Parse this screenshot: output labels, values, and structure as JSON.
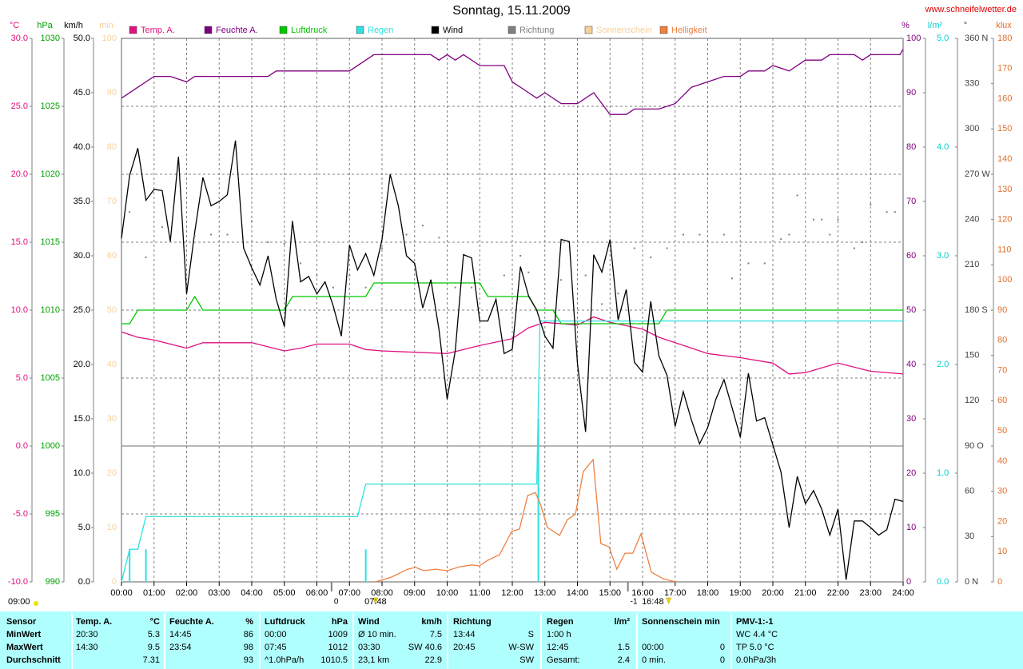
{
  "chart_data": {
    "type": "line",
    "title": "Sonntag, 15.11.2009",
    "source": "www.schneifelwetter.de",
    "xlim": [
      0,
      24
    ],
    "xticks": [
      {
        "value": 0,
        "label": "00:00"
      },
      {
        "value": 1,
        "label": "01:00"
      },
      {
        "value": 2,
        "label": "02:00"
      },
      {
        "value": 3,
        "label": "03:00"
      },
      {
        "value": 4,
        "label": "04:00"
      },
      {
        "value": 5,
        "label": "05:00"
      },
      {
        "value": 6,
        "label": "06:00"
      },
      {
        "value": 7,
        "label": "07:00"
      },
      {
        "value": 8,
        "label": "08:00"
      },
      {
        "value": 9,
        "label": "09:00"
      },
      {
        "value": 10,
        "label": "10:00"
      },
      {
        "value": 11,
        "label": "11:00"
      },
      {
        "value": 12,
        "label": "12:00"
      },
      {
        "value": 13,
        "label": "13:00"
      },
      {
        "value": 14,
        "label": "14:00"
      },
      {
        "value": 15,
        "label": "15:00"
      },
      {
        "value": 16,
        "label": "16:00"
      },
      {
        "value": 17,
        "label": "17:00"
      },
      {
        "value": 18,
        "label": "18:00"
      },
      {
        "value": 19,
        "label": "19:00"
      },
      {
        "value": 20,
        "label": "20:00"
      },
      {
        "value": 21,
        "label": "21:00"
      },
      {
        "value": 22,
        "label": "22:00"
      },
      {
        "value": 23,
        "label": "23:00"
      },
      {
        "value": 24,
        "label": "24:00"
      }
    ],
    "grid": true,
    "grid_axis": "temp",
    "axes": {
      "temp": {
        "unit": "°C",
        "color": "#e01080",
        "lim": [
          -10,
          30
        ],
        "ticks": [
          {
            "value": -10,
            "label": "-10.0"
          },
          {
            "value": -5,
            "label": "-5.0"
          },
          {
            "value": 0,
            "label": "0.0"
          },
          {
            "value": 5,
            "label": "5.0"
          },
          {
            "value": 10,
            "label": "10.0"
          },
          {
            "value": 15,
            "label": "15.0"
          },
          {
            "value": 20,
            "label": "20.0"
          },
          {
            "value": 25,
            "label": "25.0"
          },
          {
            "value": 30,
            "label": "30.0"
          }
        ]
      },
      "pressure": {
        "unit": "hPa",
        "color": "#00a000",
        "lim": [
          990,
          1030
        ],
        "ticks": [
          990,
          995,
          1000,
          1005,
          1010,
          1015,
          1020,
          1025,
          1030
        ]
      },
      "wind": {
        "unit": "km/h",
        "color": "#000000",
        "lim": [
          0,
          50
        ],
        "ticks": [
          {
            "value": 0,
            "label": "0.0"
          },
          {
            "value": 5,
            "label": "5.0"
          },
          {
            "value": 10,
            "label": "10.0"
          },
          {
            "value": 15,
            "label": "15.0"
          },
          {
            "value": 20,
            "label": "20.0"
          },
          {
            "value": 25,
            "label": "25.0"
          },
          {
            "value": 30,
            "label": "30.0"
          },
          {
            "value": 35,
            "label": "35.0"
          },
          {
            "value": 40,
            "label": "40.0"
          },
          {
            "value": 45,
            "label": "45.0"
          },
          {
            "value": 50,
            "label": "50.0"
          }
        ]
      },
      "sun": {
        "unit": "min",
        "color": "#f8d098",
        "lim": [
          0,
          100
        ],
        "ticks": [
          0,
          10,
          20,
          30,
          40,
          50,
          60,
          70,
          80,
          90,
          100
        ]
      },
      "hum": {
        "unit": "%",
        "color": "#800080",
        "lim": [
          0,
          100
        ],
        "ticks": [
          0,
          10,
          20,
          30,
          40,
          50,
          60,
          70,
          80,
          90,
          100
        ]
      },
      "rain": {
        "unit": "l/m²",
        "color": "#00d0d0",
        "lim": [
          0,
          5
        ],
        "ticks": [
          {
            "value": 0,
            "label": "0.0"
          },
          {
            "value": 1,
            "label": "1.0"
          },
          {
            "value": 2,
            "label": "2.0"
          },
          {
            "value": 3,
            "label": "3.0"
          },
          {
            "value": 4,
            "label": "4.0"
          },
          {
            "value": 5,
            "label": "5.0"
          }
        ]
      },
      "dir": {
        "unit": "°",
        "color": "#404040",
        "lim": [
          0,
          360
        ],
        "ticks": [
          {
            "value": 0,
            "label": "0 N"
          },
          30,
          60,
          {
            "value": 90,
            "label": "90 O"
          },
          120,
          150,
          {
            "value": 180,
            "label": "180 S"
          },
          210,
          240,
          {
            "value": 270,
            "label": "270 W"
          },
          300,
          330,
          {
            "value": 360,
            "label": "360 N"
          }
        ]
      },
      "lux": {
        "unit": "klux",
        "color": "#e07030",
        "lim": [
          0,
          180
        ],
        "ticks": [
          0,
          10,
          20,
          30,
          40,
          50,
          60,
          70,
          80,
          90,
          100,
          110,
          120,
          130,
          140,
          150,
          160,
          170,
          180
        ]
      }
    },
    "series": [
      {
        "name": "Temp. A.",
        "color": "#e01080",
        "axis": "temp",
        "x": [
          0,
          0.5,
          1,
          1.5,
          2,
          2.5,
          3,
          4,
          5,
          5.5,
          6,
          7,
          7.5,
          8,
          9,
          10,
          11,
          12,
          12.5,
          13,
          14,
          14.5,
          15,
          16,
          16.5,
          17,
          18,
          19,
          20,
          20.5,
          21,
          22,
          23,
          24
        ],
        "values": [
          8.4,
          8.0,
          7.8,
          7.5,
          7.2,
          7.6,
          7.6,
          7.6,
          7.0,
          7.2,
          7.5,
          7.5,
          7.1,
          7.0,
          6.9,
          6.8,
          7.4,
          7.9,
          8.7,
          9.1,
          8.9,
          9.5,
          9.1,
          8.6,
          8.0,
          7.6,
          6.8,
          6.5,
          6.1,
          5.3,
          5.4,
          6.1,
          5.5,
          5.3
        ]
      },
      {
        "name": "Feuchte A.",
        "color": "#800080",
        "axis": "hum",
        "x": [
          0,
          0.5,
          1,
          1.5,
          2,
          2.25,
          4.5,
          4.75,
          7,
          7.75,
          9.5,
          9.75,
          10,
          10.25,
          10.5,
          11,
          11.75,
          12,
          12.5,
          12.75,
          13,
          13.5,
          14,
          14.5,
          15,
          15.5,
          15.75,
          16.5,
          17,
          17.5,
          18,
          18.5,
          19,
          19.25,
          19.75,
          20,
          20.5,
          21,
          21.5,
          21.75,
          22.5,
          22.75,
          23,
          23.9,
          24
        ],
        "values": [
          89,
          91,
          93,
          93,
          92,
          93,
          93,
          94,
          94,
          97,
          97,
          96,
          97,
          96,
          97,
          95,
          95,
          92,
          90,
          89,
          90,
          88,
          88,
          90,
          86,
          86,
          87,
          87,
          88,
          91,
          92,
          93,
          93,
          94,
          94,
          95,
          94,
          96,
          96,
          97,
          97,
          96,
          97,
          97,
          98
        ]
      },
      {
        "name": "Luftdruck",
        "color": "#00c800",
        "axis": "pressure",
        "x": [
          0,
          0.25,
          0.5,
          2,
          2.25,
          2.5,
          5,
          5.25,
          7.5,
          7.75,
          11,
          11.25,
          12.5,
          12.75,
          13.25,
          13.5,
          16.5,
          16.75,
          24
        ],
        "values": [
          1009,
          1009,
          1010,
          1010,
          1011,
          1010,
          1010,
          1011,
          1011,
          1012,
          1012,
          1011,
          1011,
          1010,
          1010,
          1009,
          1009,
          1010,
          1010
        ]
      },
      {
        "name": "Regen",
        "color": "#30e0e0",
        "axis": "rain",
        "x": [
          0,
          0.25,
          0.5,
          0.75,
          7.25,
          7.5,
          12.75,
          12.85,
          24
        ],
        "values": [
          0,
          0.3,
          0.3,
          0.6,
          0.6,
          0.9,
          0.9,
          2.4,
          2.4
        ],
        "bars": {
          "x": [
            0.25,
            0.75,
            7.5,
            12.8
          ],
          "values": [
            0.3,
            0.3,
            0.3,
            1.5
          ]
        }
      },
      {
        "name": "Wind",
        "color": "#000000",
        "axis": "wind",
        "x": [
          0,
          0.25,
          0.5,
          0.75,
          1,
          1.25,
          1.5,
          1.75,
          2,
          2.25,
          2.5,
          2.75,
          3,
          3.25,
          3.5,
          3.75,
          4,
          4.25,
          4.5,
          4.75,
          5,
          5.25,
          5.5,
          5.75,
          6,
          6.25,
          6.5,
          6.75,
          7,
          7.25,
          7.5,
          7.75,
          8,
          8.25,
          8.5,
          8.75,
          9,
          9.25,
          9.5,
          9.75,
          10,
          10.25,
          10.5,
          10.75,
          11,
          11.25,
          11.5,
          11.75,
          12,
          12.25,
          12.5,
          12.75,
          13,
          13.25,
          13.5,
          13.75,
          14,
          14.25,
          14.5,
          14.75,
          15,
          15.25,
          15.5,
          15.75,
          16,
          16.25,
          16.5,
          16.75,
          17,
          17.25,
          17.5,
          17.75,
          18,
          18.25,
          18.5,
          18.75,
          19,
          19.25,
          19.5,
          19.75,
          20,
          20.25,
          20.5,
          20.75,
          21,
          21.25,
          21.5,
          21.75,
          22,
          22.25,
          22.5,
          22.75,
          23,
          23.25,
          23.5,
          23.75,
          24
        ],
        "values": [
          31.6,
          37.4,
          39.9,
          35.1,
          36.1,
          36.0,
          31.3,
          39.1,
          26.5,
          32.2,
          37.2,
          34.6,
          35.0,
          35.6,
          40.6,
          30.7,
          28.9,
          27.3,
          30.0,
          26.0,
          23.5,
          33.2,
          27.6,
          28.1,
          26.5,
          27.6,
          25.4,
          22.6,
          31.0,
          28.7,
          30.2,
          28.2,
          31.5,
          37.5,
          34.6,
          30.0,
          29.3,
          25.2,
          27.8,
          23.2,
          16.8,
          21.3,
          30.1,
          29.8,
          24.0,
          24.0,
          26.0,
          21.0,
          21.4,
          29.0,
          26.3,
          25.0,
          22.6,
          21.5,
          31.5,
          31.3,
          20.1,
          13.8,
          30.1,
          28.5,
          31.5,
          24.1,
          26.9,
          20.2,
          19.3,
          25.8,
          20.8,
          19.0,
          14.3,
          17.5,
          14.9,
          12.7,
          14.2,
          16.8,
          18.6,
          16.0,
          13.3,
          19.2,
          14.8,
          15.1,
          12.6,
          10.1,
          5.0,
          9.7,
          7.2,
          8.4,
          6.7,
          4.3,
          6.7,
          0.2,
          5.6,
          5.6,
          5.0,
          4.3,
          4.8,
          7.6,
          7.4
        ]
      },
      {
        "name": "Richtung",
        "color": "#808080",
        "axis": "dir",
        "style": "dots",
        "x": [
          0.25,
          0.75,
          1.25,
          2.25,
          2.75,
          3.25,
          4,
          4.5,
          5,
          5.5,
          6,
          6.5,
          7,
          7.5,
          8,
          8.75,
          9.25,
          9.75,
          10.25,
          10.75,
          11.75,
          12.25,
          12.5,
          13.5,
          14.25,
          14.75,
          15.25,
          15.75,
          16.25,
          16.75,
          17.25,
          17.75,
          18.5,
          18.75,
          19.25,
          19.75,
          20.25,
          20.5,
          20.75,
          21.25,
          21.5,
          21.75,
          22,
          22.5,
          22.75,
          23,
          23.5,
          23.75
        ],
        "values": [
          245,
          215,
          235,
          229,
          230,
          230,
          239,
          225,
          224,
          211,
          203,
          195,
          203,
          195,
          221,
          230,
          236,
          228,
          195,
          195,
          203,
          216,
          205,
          200,
          203,
          184,
          191,
          221,
          215,
          221,
          230,
          230,
          230,
          201,
          211,
          211,
          227,
          230,
          256,
          240,
          240,
          230,
          240,
          221,
          225,
          250,
          245,
          245
        ]
      },
      {
        "name": "Sonnenschein",
        "color": "#f8d098",
        "axis": "sun"
      },
      {
        "name": "Helligkeit",
        "color": "#f08040",
        "axis": "lux",
        "x": [
          7.8,
          8.29,
          8.79,
          9.03,
          9.28,
          9.64,
          10.01,
          10.38,
          10.75,
          10.99,
          11.24,
          11.61,
          11.98,
          12.22,
          12.47,
          12.71,
          12.86,
          13.08,
          13.45,
          13.69,
          13.94,
          14.18,
          14.48,
          14.72,
          14.97,
          15.21,
          15.46,
          15.7,
          15.95,
          16.27,
          16.64,
          17.01
        ],
        "values": [
          0,
          1.6,
          4.2,
          4.8,
          3.7,
          4.2,
          3.7,
          5,
          5.6,
          5.3,
          7.1,
          9,
          16.7,
          17.5,
          28.6,
          29.6,
          25.9,
          18,
          15.4,
          20.6,
          22.5,
          36.5,
          40.5,
          12.7,
          11.6,
          4.2,
          9.5,
          9.5,
          15.9,
          3.2,
          1,
          0
        ]
      }
    ],
    "footer_time": "09:00",
    "sun_markers": [
      {
        "x": 7.8,
        "label": "07:48"
      },
      {
        "x": 16.8,
        "label": "16:48"
      }
    ],
    "trend_markers": [
      {
        "x": 6.45,
        "label": "0"
      },
      {
        "x": 15.55,
        "label": "-1"
      }
    ]
  },
  "table": {
    "columns": [
      {
        "header": [
          "Sensor"
        ],
        "rows": [
          {
            "left": "MinWert"
          },
          {
            "left": "MaxWert"
          },
          {
            "left": "Durchschnitt"
          }
        ]
      },
      {
        "header": [
          "Temp. A.",
          "°C"
        ],
        "rows": [
          {
            "left": "20:30",
            "right": "5.3"
          },
          {
            "left": "14:30",
            "right": "9.5"
          },
          {
            "right": "7.31"
          }
        ]
      },
      {
        "header": [
          "Feuchte A.",
          "%"
        ],
        "rows": [
          {
            "left": "14:45",
            "right": "86"
          },
          {
            "left": "23:54",
            "right": "98"
          },
          {
            "right": "93"
          }
        ]
      },
      {
        "header": [
          "Luftdruck",
          "hPa"
        ],
        "rows": [
          {
            "left": "00:00",
            "right": "1009"
          },
          {
            "left": "07:45",
            "right": "1012"
          },
          {
            "left": "^1.0hPa/h",
            "right": "1010.5"
          }
        ]
      },
      {
        "header": [
          "Wind",
          "km/h"
        ],
        "rows": [
          {
            "left": "Ø 10 min.",
            "right": "7.5"
          },
          {
            "left": "03:30",
            "right": "SW 40.6"
          },
          {
            "left": "23,1 km",
            "right": "22.9"
          }
        ]
      },
      {
        "header": [
          "Richtung"
        ],
        "rows": [
          {
            "left": "13:44",
            "right": "S"
          },
          {
            "left": "20:45",
            "right": "W-SW"
          },
          {
            "right": "SW"
          }
        ]
      },
      {
        "header": [
          "Regen",
          "l/m²"
        ],
        "rows": [
          {
            "left": "1:00 h"
          },
          {
            "left": "12:45",
            "right": "1.5"
          },
          {
            "left": "Gesamt:",
            "right": "2.4"
          }
        ]
      },
      {
        "header": [
          "Sonnenschein min"
        ],
        "rows": [
          {},
          {
            "left": "00:00",
            "right": "0"
          },
          {
            "left": "0 min.",
            "right": "0"
          }
        ]
      },
      {
        "header": [
          "PMV-1:-1"
        ],
        "rows": [
          {
            "left": "WC 4.4 °C"
          },
          {
            "left": "TP 5.0 °C"
          },
          {
            "left": "0.0hPa/3h"
          }
        ]
      }
    ]
  }
}
